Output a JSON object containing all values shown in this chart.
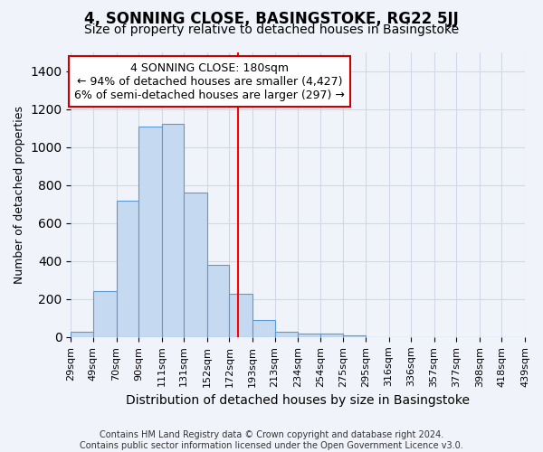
{
  "title": "4, SONNING CLOSE, BASINGSTOKE, RG22 5JJ",
  "subtitle": "Size of property relative to detached houses in Basingstoke",
  "xlabel": "Distribution of detached houses by size in Basingstoke",
  "ylabel": "Number of detached properties",
  "bin_edges": [
    29,
    49,
    70,
    90,
    111,
    131,
    152,
    172,
    193,
    213,
    234,
    254,
    275,
    295,
    316,
    336,
    357,
    377,
    398,
    418,
    439
  ],
  "bar_heights": [
    30,
    240,
    720,
    1110,
    1120,
    760,
    380,
    230,
    90,
    30,
    20,
    20,
    10,
    0,
    0,
    0,
    0,
    0,
    0,
    0
  ],
  "bar_color": "#c5d9f0",
  "bar_edge_color": "#5b9bd5",
  "red_line_x": 180,
  "annotation_line1": "4 SONNING CLOSE: 180sqm",
  "annotation_line2": "← 94% of detached houses are smaller (4,427)",
  "annotation_line3": "6% of semi-detached houses are larger (297) →",
  "annotation_box_color": "#ffffff",
  "annotation_box_edge_color": "#cc0000",
  "ylim": [
    0,
    1500
  ],
  "yticks": [
    0,
    200,
    400,
    600,
    800,
    1000,
    1200,
    1400
  ],
  "footer_text": "Contains HM Land Registry data © Crown copyright and database right 2024.\nContains public sector information licensed under the Open Government Licence v3.0.",
  "bg_color": "#f0f4fa",
  "grid_color": "#d0d8e8",
  "title_fontsize": 12,
  "subtitle_fontsize": 10,
  "tick_label_fontsize": 8,
  "ylabel_fontsize": 9,
  "xlabel_fontsize": 10,
  "annotation_fontsize": 9
}
